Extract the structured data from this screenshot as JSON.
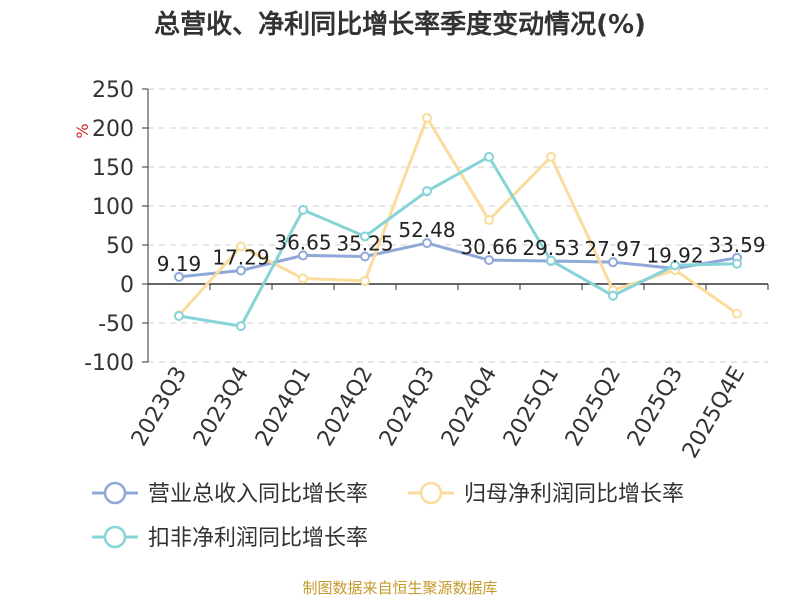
{
  "chart_data": {
    "type": "line",
    "title": "总营收、净利同比增长率季度变动情况(%)",
    "ylabel": "%",
    "xlabel": "",
    "categories": [
      "2023Q3",
      "2023Q4",
      "2024Q1",
      "2024Q2",
      "2024Q3",
      "2024Q4",
      "2025Q1",
      "2025Q2",
      "2025Q3",
      "2025Q4E"
    ],
    "ylim": [
      -100,
      250
    ],
    "yticks": [
      250,
      200,
      150,
      100,
      50,
      0,
      -50,
      -100
    ],
    "grid": "horizontal dashed",
    "legend_position": "bottom",
    "series": [
      {
        "name": "营业总收入同比增长率",
        "color": "#8fa8d8",
        "values": [
          9.19,
          17.29,
          36.65,
          35.25,
          52.48,
          30.66,
          29.53,
          27.97,
          19.92,
          33.59
        ],
        "labels": [
          "9.19",
          "17.29",
          "36.65",
          "35.25",
          "52.48",
          "30.66",
          "29.53",
          "27.97",
          "19.92",
          "33.59"
        ]
      },
      {
        "name": "归母净利润同比增长率",
        "color": "#fadc9c",
        "values": [
          -40,
          48,
          7,
          4,
          213,
          82,
          163,
          -8,
          18,
          -38
        ]
      },
      {
        "name": "扣非净利润同比增长率",
        "color": "#86d3d8",
        "values": [
          -41,
          -54,
          95,
          61,
          119,
          163,
          30,
          -15,
          24,
          26
        ]
      }
    ]
  },
  "source_note": "制图数据来自恒生聚源数据库"
}
